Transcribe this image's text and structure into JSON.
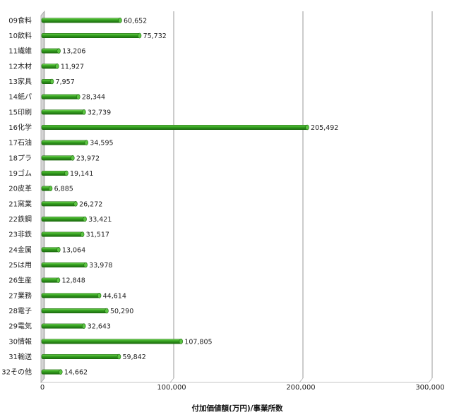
{
  "chart_data": {
    "type": "bar",
    "orientation": "horizontal",
    "categories": [
      "09食料",
      "10飲料",
      "11繊維",
      "12木材",
      "13家具",
      "14紙パ",
      "15印刷",
      "16化学",
      "17石油",
      "18プラ",
      "19ゴム",
      "20皮革",
      "21窯業",
      "22鉄鋼",
      "23非鉄",
      "24金属",
      "25は用",
      "26生産",
      "27業務",
      "28電子",
      "29電気",
      "30情報",
      "31輸送",
      "32その他"
    ],
    "values": [
      60652,
      75732,
      13206,
      11927,
      7957,
      28344,
      32739,
      205492,
      34595,
      23972,
      19141,
      6885,
      26272,
      33421,
      31517,
      13064,
      33978,
      12848,
      44614,
      50290,
      32643,
      107805,
      59842,
      14662
    ],
    "value_labels": [
      "60,652",
      "75,732",
      "13,206",
      "11,927",
      "7,957",
      "28,344",
      "32,739",
      "205,492",
      "34,595",
      "23,972",
      "19,141",
      "6,885",
      "26,272",
      "33,421",
      "31,517",
      "13,064",
      "33,978",
      "12,848",
      "44,614",
      "50,290",
      "32,643",
      "107,805",
      "59,842",
      "14,662"
    ],
    "x_ticks": [
      0,
      100000,
      200000,
      300000
    ],
    "x_tick_labels": [
      "0",
      "100,000",
      "200,000",
      "300,000"
    ],
    "xlim": [
      0,
      300000
    ],
    "xlabel": "付加価値額(万円)/事業所数",
    "ylabel": "",
    "title": "",
    "grid": "vertical",
    "legend": "none",
    "colors": {
      "bar": "#2f9a1c",
      "bar_dark": "#1c6a0e",
      "bar_light": "#6fd054",
      "grid": "#9a9a9a",
      "wall": "#c8c8c8"
    }
  }
}
